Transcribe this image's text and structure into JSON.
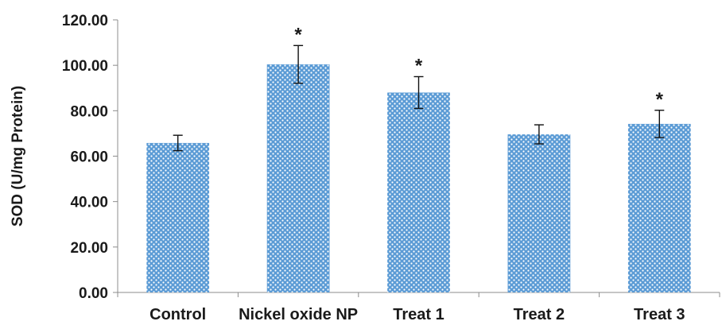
{
  "chart_data": {
    "type": "bar",
    "title": "",
    "xlabel": "",
    "ylabel": "SOD (U/mg Protein)",
    "categories": [
      "Control",
      "Nickel oxide NP",
      "Treat 1",
      "Treat 2",
      "Treat 3"
    ],
    "values": [
      65.8,
      100.4,
      88.0,
      69.6,
      74.2
    ],
    "error": [
      3.4,
      8.3,
      7.0,
      4.2,
      6.0
    ],
    "significance": [
      "",
      "*",
      "*",
      "",
      "*"
    ],
    "ylim": [
      0,
      120
    ],
    "yticks": [
      "0.00",
      "20.00",
      "40.00",
      "60.00",
      "80.00",
      "100.00",
      "120.00"
    ],
    "grid": false,
    "legend": "none",
    "bar_color": "#5b9bd5",
    "bar_pattern": "dotted"
  }
}
